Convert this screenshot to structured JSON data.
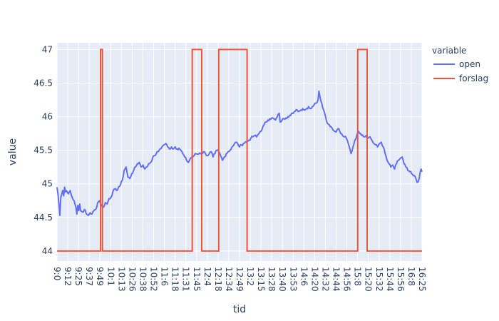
{
  "chart_data": {
    "type": "line",
    "xlabel": "tid",
    "ylabel": "value",
    "ylim": [
      43.85,
      47.1
    ],
    "yticks": [
      44,
      44.5,
      45,
      45.5,
      46,
      46.5,
      47
    ],
    "ytick_labels": [
      "44",
      "44.5",
      "45",
      "45.5",
      "46",
      "46.5",
      "47"
    ],
    "x_ticks": [
      "9:0",
      "9:12",
      "9:25",
      "9:37",
      "9:49",
      "10:1",
      "10:13",
      "10:26",
      "10:38",
      "10:52",
      "11:6",
      "11:18",
      "11:31",
      "11:45",
      "12:4",
      "12:18",
      "12:34",
      "12:49",
      "13:2",
      "13:15",
      "13:28",
      "13:40",
      "13:53",
      "14:6",
      "14:20",
      "14:32",
      "14:44",
      "14:56",
      "15:8",
      "15:20",
      "15:32",
      "15:44",
      "15:56",
      "16:8",
      "16:25"
    ],
    "x_count": 441,
    "grid": true,
    "legend_title": "variable",
    "legend_position": "right",
    "series": [
      {
        "name": "open",
        "color": "#636efa",
        "anchors": [
          [
            0,
            44.95
          ],
          [
            1,
            44.85
          ],
          [
            2,
            44.7
          ],
          [
            3,
            44.53
          ],
          [
            4,
            44.8
          ],
          [
            5,
            44.85
          ],
          [
            6,
            44.9
          ],
          [
            7,
            44.82
          ],
          [
            8,
            44.95
          ],
          [
            9,
            44.88
          ],
          [
            10,
            44.9
          ],
          [
            12,
            44.85
          ],
          [
            14,
            44.9
          ],
          [
            16,
            44.8
          ],
          [
            18,
            44.75
          ],
          [
            20,
            44.65
          ],
          [
            21,
            44.55
          ],
          [
            22,
            44.68
          ],
          [
            23,
            44.6
          ],
          [
            24,
            44.7
          ],
          [
            25,
            44.6
          ],
          [
            27,
            44.58
          ],
          [
            29,
            44.62
          ],
          [
            31,
            44.55
          ],
          [
            33,
            44.53
          ],
          [
            35,
            44.57
          ],
          [
            37,
            44.55
          ],
          [
            39,
            44.6
          ],
          [
            41,
            44.62
          ],
          [
            43,
            44.72
          ],
          [
            45,
            44.75
          ],
          [
            47,
            44.68
          ],
          [
            49,
            44.65
          ],
          [
            51,
            44.72
          ],
          [
            53,
            44.7
          ],
          [
            55,
            44.78
          ],
          [
            57,
            44.8
          ],
          [
            59,
            44.88
          ],
          [
            61,
            44.92
          ],
          [
            63,
            44.9
          ],
          [
            65,
            44.95
          ],
          [
            67,
            44.98
          ],
          [
            69,
            45.05
          ],
          [
            71,
            45.2
          ],
          [
            73,
            45.25
          ],
          [
            75,
            45.1
          ],
          [
            77,
            45.08
          ],
          [
            79,
            45.15
          ],
          [
            81,
            45.2
          ],
          [
            83,
            45.25
          ],
          [
            85,
            45.3
          ],
          [
            87,
            45.32
          ],
          [
            89,
            45.25
          ],
          [
            91,
            45.28
          ],
          [
            93,
            45.22
          ],
          [
            95,
            45.25
          ],
          [
            97,
            45.3
          ],
          [
            99,
            45.32
          ],
          [
            101,
            45.38
          ],
          [
            103,
            45.42
          ],
          [
            105,
            45.45
          ],
          [
            107,
            45.48
          ],
          [
            109,
            45.52
          ],
          [
            111,
            45.55
          ],
          [
            113,
            45.58
          ],
          [
            115,
            45.6
          ],
          [
            117,
            45.55
          ],
          [
            119,
            45.52
          ],
          [
            121,
            45.55
          ],
          [
            123,
            45.52
          ],
          [
            125,
            45.55
          ],
          [
            127,
            45.52
          ],
          [
            129,
            45.53
          ],
          [
            131,
            45.5
          ],
          [
            133,
            45.45
          ],
          [
            135,
            45.4
          ],
          [
            137,
            45.35
          ],
          [
            139,
            45.32
          ],
          [
            141,
            45.38
          ],
          [
            143,
            45.4
          ],
          [
            145,
            45.42
          ],
          [
            147,
            45.45
          ],
          [
            149,
            45.44
          ],
          [
            151,
            45.46
          ],
          [
            153,
            45.45
          ],
          [
            155,
            45.48
          ],
          [
            157,
            45.45
          ],
          [
            159,
            45.42
          ],
          [
            161,
            45.45
          ],
          [
            163,
            45.48
          ],
          [
            165,
            45.4
          ],
          [
            167,
            45.45
          ],
          [
            169,
            45.5
          ],
          [
            171,
            45.48
          ],
          [
            173,
            45.42
          ],
          [
            175,
            45.35
          ],
          [
            177,
            45.4
          ],
          [
            179,
            45.45
          ],
          [
            181,
            45.48
          ],
          [
            183,
            45.5
          ],
          [
            185,
            45.55
          ],
          [
            187,
            45.58
          ],
          [
            189,
            45.62
          ],
          [
            191,
            45.6
          ],
          [
            193,
            45.55
          ],
          [
            195,
            45.58
          ],
          [
            197,
            45.6
          ],
          [
            199,
            45.62
          ],
          [
            201,
            45.63
          ],
          [
            203,
            45.65
          ],
          [
            205,
            45.68
          ],
          [
            207,
            45.7
          ],
          [
            209,
            45.72
          ],
          [
            211,
            45.7
          ],
          [
            213,
            45.74
          ],
          [
            215,
            45.78
          ],
          [
            217,
            45.82
          ],
          [
            219,
            45.88
          ],
          [
            221,
            45.92
          ],
          [
            223,
            45.95
          ],
          [
            225,
            45.97
          ],
          [
            227,
            45.98
          ],
          [
            229,
            45.97
          ],
          [
            231,
            45.95
          ],
          [
            233,
            46.0
          ],
          [
            235,
            46.05
          ],
          [
            236,
            45.92
          ],
          [
            238,
            45.95
          ],
          [
            240,
            45.97
          ],
          [
            242,
            45.98
          ],
          [
            244,
            46.0
          ],
          [
            246,
            46.02
          ],
          [
            248,
            46.05
          ],
          [
            250,
            46.05
          ],
          [
            252,
            46.08
          ],
          [
            254,
            46.1
          ],
          [
            256,
            46.08
          ],
          [
            258,
            46.1
          ],
          [
            260,
            46.12
          ],
          [
            262,
            46.1
          ],
          [
            264,
            46.12
          ],
          [
            266,
            46.15
          ],
          [
            268,
            46.12
          ],
          [
            270,
            46.15
          ],
          [
            272,
            46.18
          ],
          [
            274,
            46.2
          ],
          [
            276,
            46.25
          ],
          [
            277,
            46.38
          ],
          [
            278,
            46.3
          ],
          [
            280,
            46.2
          ],
          [
            282,
            46.1
          ],
          [
            284,
            46.0
          ],
          [
            286,
            45.9
          ],
          [
            288,
            45.88
          ],
          [
            290,
            45.85
          ],
          [
            292,
            45.8
          ],
          [
            294,
            45.78
          ],
          [
            296,
            45.8
          ],
          [
            298,
            45.82
          ],
          [
            300,
            45.75
          ],
          [
            302,
            45.72
          ],
          [
            304,
            45.7
          ],
          [
            306,
            45.68
          ],
          [
            308,
            45.6
          ],
          [
            310,
            45.5
          ],
          [
            311,
            45.45
          ],
          [
            313,
            45.55
          ],
          [
            315,
            45.65
          ],
          [
            317,
            45.72
          ],
          [
            319,
            45.78
          ],
          [
            321,
            45.75
          ],
          [
            323,
            45.73
          ],
          [
            325,
            45.7
          ],
          [
            327,
            45.72
          ],
          [
            329,
            45.68
          ],
          [
            331,
            45.7
          ],
          [
            333,
            45.65
          ],
          [
            335,
            45.6
          ],
          [
            337,
            45.58
          ],
          [
            339,
            45.55
          ],
          [
            341,
            45.6
          ],
          [
            343,
            45.62
          ],
          [
            345,
            45.55
          ],
          [
            347,
            45.45
          ],
          [
            349,
            45.35
          ],
          [
            351,
            45.3
          ],
          [
            353,
            45.25
          ],
          [
            355,
            45.28
          ],
          [
            357,
            45.22
          ],
          [
            359,
            45.3
          ],
          [
            361,
            45.35
          ],
          [
            363,
            45.38
          ],
          [
            365,
            45.4
          ],
          [
            367,
            45.3
          ],
          [
            369,
            45.25
          ],
          [
            371,
            45.2
          ],
          [
            373,
            45.18
          ],
          [
            375,
            45.15
          ],
          [
            377,
            45.12
          ],
          [
            379,
            45.1
          ],
          [
            381,
            45.02
          ],
          [
            383,
            45.08
          ],
          [
            385,
            45.22
          ],
          [
            386,
            45.18
          ]
        ]
      },
      {
        "name": "forslag",
        "color": "#ef553b",
        "steps": [
          [
            0,
            44
          ],
          [
            46,
            44
          ],
          [
            46,
            47
          ],
          [
            48,
            47
          ],
          [
            48,
            44
          ],
          [
            143,
            44
          ],
          [
            143,
            47
          ],
          [
            153,
            47
          ],
          [
            153,
            44
          ],
          [
            171,
            44
          ],
          [
            171,
            47
          ],
          [
            201,
            47
          ],
          [
            201,
            44
          ],
          [
            318,
            44
          ],
          [
            318,
            47
          ],
          [
            328,
            47
          ],
          [
            328,
            44
          ],
          [
            386,
            44
          ]
        ]
      }
    ]
  }
}
